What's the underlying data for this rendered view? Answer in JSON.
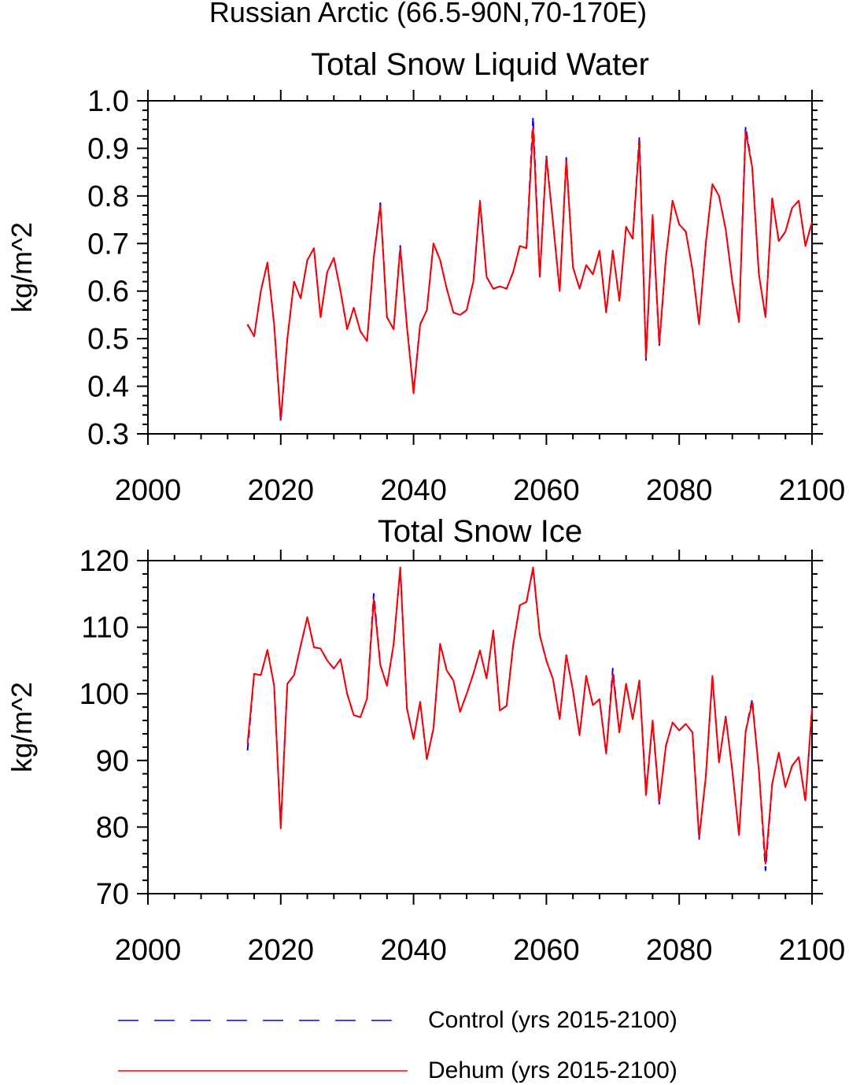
{
  "figure": {
    "title": "Russian Arctic (66.5-90N,70-170E)"
  },
  "legend": {
    "entries": [
      {
        "label": "Control (yrs 2015-2100)",
        "color": "#0000ff",
        "style": "dashed"
      },
      {
        "label": "Dehum (yrs 2015-2100)",
        "color": "#ff0000",
        "style": "solid"
      }
    ]
  },
  "chart_data": [
    {
      "type": "line",
      "title": "Total Snow Liquid Water",
      "xlabel": "",
      "ylabel": "kg/m^2",
      "xlim": [
        2000,
        2100
      ],
      "ylim": [
        0.3,
        1.0
      ],
      "xticks": [
        2000,
        2020,
        2040,
        2060,
        2080,
        2100
      ],
      "yticks": [
        0.3,
        0.4,
        0.5,
        0.6,
        0.7,
        0.8,
        0.9,
        1.0
      ],
      "ytick_labels": [
        "0.3",
        "0.4",
        "0.5",
        "0.6",
        "0.7",
        "0.8",
        "0.9",
        "1.0"
      ],
      "x": [
        2015,
        2016,
        2017,
        2018,
        2019,
        2020,
        2021,
        2022,
        2023,
        2024,
        2025,
        2026,
        2027,
        2028,
        2029,
        2030,
        2031,
        2032,
        2033,
        2034,
        2035,
        2036,
        2037,
        2038,
        2039,
        2040,
        2041,
        2042,
        2043,
        2044,
        2045,
        2046,
        2047,
        2048,
        2049,
        2050,
        2051,
        2052,
        2053,
        2054,
        2055,
        2056,
        2057,
        2058,
        2059,
        2060,
        2061,
        2062,
        2063,
        2064,
        2065,
        2066,
        2067,
        2068,
        2069,
        2070,
        2071,
        2072,
        2073,
        2074,
        2075,
        2076,
        2077,
        2078,
        2079,
        2080,
        2081,
        2082,
        2083,
        2084,
        2085,
        2086,
        2087,
        2088,
        2089,
        2090,
        2091,
        2092,
        2093,
        2094,
        2095,
        2096,
        2097,
        2098,
        2099,
        2100
      ],
      "series": [
        {
          "name": "Control (yrs 2015-2100)",
          "color": "#0000ff",
          "style": "dashed",
          "values": [
            0.53,
            0.505,
            0.6,
            0.66,
            0.53,
            0.325,
            0.5,
            0.62,
            0.585,
            0.665,
            0.69,
            0.545,
            0.64,
            0.67,
            0.6,
            0.52,
            0.565,
            0.515,
            0.495,
            0.67,
            0.785,
            0.545,
            0.52,
            0.695,
            0.525,
            0.39,
            0.53,
            0.56,
            0.7,
            0.665,
            0.605,
            0.555,
            0.55,
            0.56,
            0.62,
            0.785,
            0.63,
            0.605,
            0.61,
            0.605,
            0.64,
            0.695,
            0.69,
            0.965,
            0.63,
            0.885,
            0.745,
            0.6,
            0.88,
            0.65,
            0.605,
            0.655,
            0.635,
            0.685,
            0.555,
            0.685,
            0.58,
            0.735,
            0.71,
            0.925,
            0.455,
            0.755,
            0.485,
            0.67,
            0.79,
            0.74,
            0.725,
            0.645,
            0.53,
            0.7,
            0.825,
            0.8,
            0.73,
            0.62,
            0.535,
            0.945,
            0.86,
            0.635,
            0.545,
            0.795,
            0.705,
            0.725,
            0.775,
            0.79,
            0.695,
            0.745
          ]
        },
        {
          "name": "Dehum (yrs 2015-2100)",
          "color": "#ff0000",
          "style": "solid",
          "values": [
            0.53,
            0.505,
            0.6,
            0.66,
            0.53,
            0.33,
            0.5,
            0.62,
            0.585,
            0.665,
            0.69,
            0.545,
            0.64,
            0.67,
            0.6,
            0.52,
            0.565,
            0.515,
            0.495,
            0.67,
            0.78,
            0.545,
            0.52,
            0.69,
            0.525,
            0.385,
            0.53,
            0.56,
            0.7,
            0.665,
            0.605,
            0.555,
            0.55,
            0.56,
            0.62,
            0.79,
            0.63,
            0.605,
            0.61,
            0.605,
            0.64,
            0.695,
            0.69,
            0.945,
            0.63,
            0.88,
            0.745,
            0.6,
            0.875,
            0.65,
            0.605,
            0.655,
            0.635,
            0.685,
            0.555,
            0.685,
            0.58,
            0.735,
            0.71,
            0.915,
            0.46,
            0.76,
            0.49,
            0.67,
            0.79,
            0.74,
            0.725,
            0.645,
            0.53,
            0.7,
            0.825,
            0.8,
            0.73,
            0.62,
            0.535,
            0.935,
            0.86,
            0.635,
            0.545,
            0.795,
            0.705,
            0.725,
            0.775,
            0.79,
            0.695,
            0.745
          ]
        }
      ]
    },
    {
      "type": "line",
      "title": "Total Snow Ice",
      "xlabel": "",
      "ylabel": "kg/m^2",
      "xlim": [
        2000,
        2100
      ],
      "ylim": [
        70,
        120
      ],
      "xticks": [
        2000,
        2020,
        2040,
        2060,
        2080,
        2100
      ],
      "yticks": [
        70,
        80,
        90,
        100,
        110,
        120
      ],
      "ytick_labels": [
        "70",
        "80",
        "90",
        "100",
        "110",
        "120"
      ],
      "x": [
        2015,
        2016,
        2017,
        2018,
        2019,
        2020,
        2021,
        2022,
        2023,
        2024,
        2025,
        2026,
        2027,
        2028,
        2029,
        2030,
        2031,
        2032,
        2033,
        2034,
        2035,
        2036,
        2037,
        2038,
        2039,
        2040,
        2041,
        2042,
        2043,
        2044,
        2045,
        2046,
        2047,
        2048,
        2049,
        2050,
        2051,
        2052,
        2053,
        2054,
        2055,
        2056,
        2057,
        2058,
        2059,
        2060,
        2061,
        2062,
        2063,
        2064,
        2065,
        2066,
        2067,
        2068,
        2069,
        2070,
        2071,
        2072,
        2073,
        2074,
        2075,
        2076,
        2077,
        2078,
        2079,
        2080,
        2081,
        2082,
        2083,
        2084,
        2085,
        2086,
        2087,
        2088,
        2089,
        2090,
        2091,
        2092,
        2093,
        2094,
        2095,
        2096,
        2097,
        2098,
        2099,
        2100
      ],
      "series": [
        {
          "name": "Control (yrs 2015-2100)",
          "color": "#0000ff",
          "style": "dashed",
          "values": [
            91.5,
            103,
            102.8,
            106.6,
            101.2,
            80.2,
            101.5,
            102.8,
            107.2,
            111.5,
            107,
            106.8,
            105,
            103.8,
            105.2,
            100,
            96.8,
            96.5,
            99.3,
            115,
            104.3,
            101.2,
            107.5,
            118.8,
            97.8,
            93.2,
            98.8,
            90.2,
            94.8,
            107.5,
            103.5,
            102,
            97.3,
            100,
            103,
            106.5,
            102.3,
            109.5,
            97.5,
            98.2,
            107.3,
            113.3,
            113.8,
            118.8,
            108.8,
            105,
            102.2,
            96.2,
            105.8,
            100.5,
            93.8,
            102.7,
            98.3,
            99.2,
            91,
            103.8,
            94.2,
            101.5,
            96.2,
            102,
            85.2,
            95.8,
            83.5,
            92.2,
            95.7,
            94.5,
            95.5,
            94.2,
            78.2,
            87.5,
            102.5,
            89.7,
            96.6,
            88.5,
            78.8,
            94.3,
            99.2,
            88.5,
            73.5,
            86.5,
            91.2,
            86,
            89.2,
            90.5,
            83.8,
            97.8
          ]
        },
        {
          "name": "Dehum (yrs 2015-2100)",
          "color": "#ff0000",
          "style": "solid",
          "values": [
            92.5,
            103,
            102.8,
            106.6,
            101.2,
            79.8,
            101.5,
            102.8,
            107.2,
            111.5,
            107,
            106.8,
            105,
            103.8,
            105.2,
            100,
            96.8,
            96.5,
            99.3,
            114.2,
            104.3,
            101.2,
            107.5,
            119,
            97.8,
            93.2,
            98.8,
            90.2,
            94.8,
            107.5,
            103.5,
            102,
            97.3,
            100,
            103,
            106.5,
            102.3,
            109.5,
            97.5,
            98.2,
            107.3,
            113.3,
            113.8,
            119,
            108.8,
            105,
            102.2,
            96.2,
            105.8,
            100.5,
            93.8,
            102.7,
            98.3,
            99.2,
            91,
            103,
            94.2,
            101.5,
            96.2,
            102,
            84.8,
            96,
            83.8,
            92.2,
            95.7,
            94.5,
            95.5,
            94.2,
            78.5,
            87.5,
            102.7,
            89.7,
            96.6,
            88.5,
            78.8,
            94.3,
            98.7,
            88.5,
            74.5,
            86.5,
            91.2,
            86,
            89.2,
            90.5,
            84,
            97.8
          ]
        }
      ]
    }
  ]
}
